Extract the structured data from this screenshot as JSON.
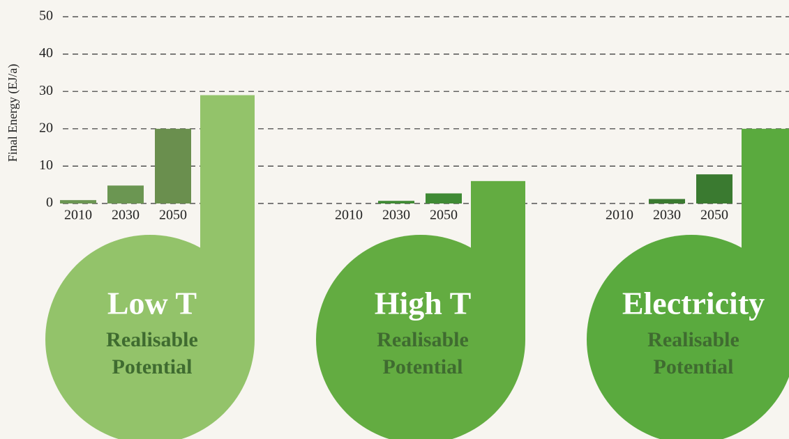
{
  "chart_data": {
    "type": "bar",
    "y_label": "Final Energy (EJ/a)",
    "ylim": [
      0,
      50
    ],
    "yticks": [
      0,
      10,
      20,
      30,
      40,
      50
    ],
    "grid": true,
    "groups": [
      {
        "name": "Low T",
        "potential_label": [
          "Realisable",
          "Potential"
        ],
        "categories": [
          "2010",
          "2030",
          "2050"
        ],
        "values": [
          0.9,
          4.8,
          20
        ],
        "potential": 29,
        "bar_colors": [
          "#6b9652",
          "#6b9652",
          "#6a8f4e"
        ],
        "potential_color": "#93c36a"
      },
      {
        "name": "High T",
        "potential_label": [
          "Realisable",
          "Potential"
        ],
        "categories": [
          "2010",
          "2030",
          "2050"
        ],
        "values": [
          0,
          0.7,
          2.7
        ],
        "potential": 6,
        "bar_colors": [
          "#3f8a34",
          "#3f8a34",
          "#3f8a34"
        ],
        "potential_color": "#63ac41"
      },
      {
        "name": "Electricity",
        "potential_label": [
          "Realisable",
          "Potential"
        ],
        "categories": [
          "2010",
          "2030",
          "2050"
        ],
        "values": [
          0,
          1.2,
          7.8
        ],
        "potential": 20,
        "bar_colors": [
          "#3a7a30",
          "#3a7a30",
          "#3a7a30"
        ],
        "potential_color": "#5aaa3e"
      }
    ]
  }
}
